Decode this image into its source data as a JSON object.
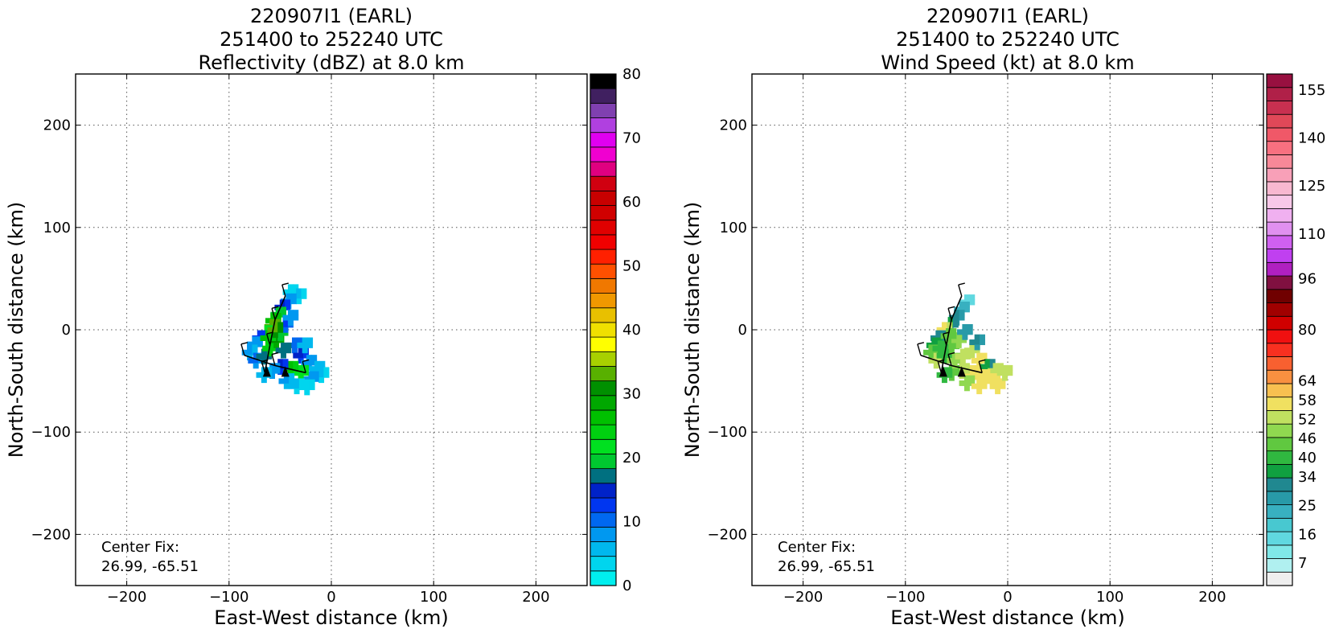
{
  "chart_data": [
    {
      "type": "heatmap",
      "title_lines": [
        "220907I1 (EARL)",
        "251400 to 252240 UTC",
        "Reflectivity (dBZ) at 8.0 km"
      ],
      "xlabel": "East-West distance (km)",
      "ylabel": "North-South distance (km)",
      "xlim": [
        -250,
        250
      ],
      "ylim": [
        -250,
        250
      ],
      "xticks": [
        -200,
        -100,
        0,
        100,
        200
      ],
      "yticks": [
        -200,
        -100,
        0,
        100,
        200
      ],
      "grid": true,
      "annotation": [
        "Center Fix:",
        "26.99, -65.51"
      ],
      "colorbar": {
        "min": 0,
        "max": 80,
        "tick_values": [
          0,
          10,
          20,
          30,
          40,
          50,
          60,
          70,
          80
        ],
        "tick_labels": [
          "0",
          "10",
          "20",
          "30",
          "40",
          "50",
          "60",
          "70",
          "80"
        ],
        "colors": [
          "#00eeee",
          "#00d5ee",
          "#00b8ee",
          "#0098f0",
          "#0068f0",
          "#0036f0",
          "#0022c8",
          "#007080",
          "#00c830",
          "#00e020",
          "#00d010",
          "#00c000",
          "#00a800",
          "#009000",
          "#58b000",
          "#a8d000",
          "#ffff00",
          "#f0e000",
          "#e8c000",
          "#f09800",
          "#f07800",
          "#ff5000",
          "#ff2000",
          "#f00000",
          "#e00000",
          "#d00000",
          "#c80000",
          "#d00010",
          "#e00080",
          "#f000d0",
          "#e000f0",
          "#b040e0",
          "#8040b0",
          "#402060",
          "#000000"
        ]
      },
      "echo_cells": [
        {
          "x": -40,
          "y": 37,
          "v": 4
        },
        {
          "x": -32,
          "y": 33,
          "v": 5
        },
        {
          "x": -42,
          "y": 28,
          "v": 8
        },
        {
          "x": -48,
          "y": 22,
          "v": 14
        },
        {
          "x": -52,
          "y": 15,
          "v": 20
        },
        {
          "x": -57,
          "y": 9,
          "v": 27
        },
        {
          "x": -58,
          "y": 3,
          "v": 33
        },
        {
          "x": -63,
          "y": -3,
          "v": 22
        },
        {
          "x": -70,
          "y": -8,
          "v": 13
        },
        {
          "x": -75,
          "y": -14,
          "v": 9
        },
        {
          "x": -80,
          "y": -22,
          "v": 7
        },
        {
          "x": -74,
          "y": -30,
          "v": 10
        },
        {
          "x": -66,
          "y": -26,
          "v": 18
        },
        {
          "x": -60,
          "y": -18,
          "v": 25
        },
        {
          "x": -54,
          "y": -10,
          "v": 30
        },
        {
          "x": -50,
          "y": -3,
          "v": 20
        },
        {
          "x": -45,
          "y": 5,
          "v": 12
        },
        {
          "x": -40,
          "y": 12,
          "v": 8
        },
        {
          "x": -36,
          "y": -15,
          "v": 11
        },
        {
          "x": -30,
          "y": -25,
          "v": 14
        },
        {
          "x": -22,
          "y": -32,
          "v": 9
        },
        {
          "x": -14,
          "y": -38,
          "v": 6
        },
        {
          "x": -10,
          "y": -44,
          "v": 5
        },
        {
          "x": -20,
          "y": -48,
          "v": 8
        },
        {
          "x": -30,
          "y": -42,
          "v": 22
        },
        {
          "x": -40,
          "y": -38,
          "v": 26
        },
        {
          "x": -50,
          "y": -36,
          "v": 14
        },
        {
          "x": -58,
          "y": -40,
          "v": 9
        },
        {
          "x": -66,
          "y": -44,
          "v": 6
        },
        {
          "x": -44,
          "y": -50,
          "v": 7
        },
        {
          "x": -34,
          "y": -55,
          "v": 5
        },
        {
          "x": -24,
          "y": -56,
          "v": 4
        },
        {
          "x": -62,
          "y": -8,
          "v": 26
        },
        {
          "x": -55,
          "y": 0,
          "v": 32
        },
        {
          "x": -47,
          "y": -20,
          "v": 17
        },
        {
          "x": -26,
          "y": -15,
          "v": 6
        }
      ]
    },
    {
      "type": "heatmap",
      "title_lines": [
        "220907I1 (EARL)",
        "251400 to 252240 UTC",
        "Wind Speed (kt) at 8.0 km"
      ],
      "xlabel": "East-West distance (km)",
      "ylabel": "North-South distance (km)",
      "xlim": [
        -250,
        250
      ],
      "ylim": [
        -250,
        250
      ],
      "xticks": [
        -200,
        -100,
        0,
        100,
        200
      ],
      "yticks": [
        -200,
        -100,
        0,
        100,
        200
      ],
      "grid": true,
      "annotation": [
        "Center Fix:",
        "26.99, -65.51"
      ],
      "colorbar": {
        "min": 0,
        "max": 160,
        "tick_values": [
          7,
          16,
          25,
          34,
          40,
          46,
          52,
          58,
          64,
          80,
          96,
          110,
          125,
          140,
          155
        ],
        "tick_labels": [
          "7",
          "16",
          "25",
          "34",
          "40",
          "46",
          "52",
          "58",
          "64",
          "80",
          "96",
          "110",
          "125",
          "140",
          "155"
        ],
        "colors": [
          "#eeeeee",
          "#b0f0f0",
          "#80e8e8",
          "#60d8e0",
          "#48c8d0",
          "#38b0c0",
          "#289aa8",
          "#208890",
          "#10a040",
          "#30b840",
          "#60c840",
          "#90d850",
          "#c0e060",
          "#f0e060",
          "#f8c050",
          "#f89040",
          "#f86030",
          "#f83020",
          "#f01010",
          "#d00000",
          "#a00000",
          "#700000",
          "#801040",
          "#b020c0",
          "#c040f0",
          "#d060f0",
          "#e090f0",
          "#f0b0f0",
          "#f8c8e8",
          "#f8b8d0",
          "#f8a0b8",
          "#f88898",
          "#f87080",
          "#f05868",
          "#e04858",
          "#c83050",
          "#b02048",
          "#981040"
        ]
      },
      "echo_cells": [
        {
          "x": -40,
          "y": 27,
          "v": 16
        },
        {
          "x": -45,
          "y": 20,
          "v": 25
        },
        {
          "x": -50,
          "y": 12,
          "v": 30
        },
        {
          "x": -56,
          "y": 5,
          "v": 34
        },
        {
          "x": -62,
          "y": 0,
          "v": 55
        },
        {
          "x": -68,
          "y": -8,
          "v": 32
        },
        {
          "x": -72,
          "y": -15,
          "v": 36
        },
        {
          "x": -75,
          "y": -22,
          "v": 46
        },
        {
          "x": -70,
          "y": -30,
          "v": 52
        },
        {
          "x": -62,
          "y": -25,
          "v": 40
        },
        {
          "x": -55,
          "y": -16,
          "v": 44
        },
        {
          "x": -48,
          "y": -10,
          "v": 50
        },
        {
          "x": -42,
          "y": -2,
          "v": 28
        },
        {
          "x": -35,
          "y": -20,
          "v": 54
        },
        {
          "x": -28,
          "y": -30,
          "v": 56
        },
        {
          "x": -20,
          "y": -36,
          "v": 34
        },
        {
          "x": -12,
          "y": -40,
          "v": 54
        },
        {
          "x": -15,
          "y": -50,
          "v": 58
        },
        {
          "x": -25,
          "y": -46,
          "v": 57
        },
        {
          "x": -35,
          "y": -42,
          "v": 56
        },
        {
          "x": -45,
          "y": -40,
          "v": 52
        },
        {
          "x": -55,
          "y": -42,
          "v": 46
        },
        {
          "x": -62,
          "y": -44,
          "v": 42
        },
        {
          "x": -40,
          "y": -52,
          "v": 50
        },
        {
          "x": -28,
          "y": -55,
          "v": 56
        },
        {
          "x": -10,
          "y": -55,
          "v": 58
        },
        {
          "x": -3,
          "y": -42,
          "v": 54
        },
        {
          "x": -52,
          "y": -30,
          "v": 48
        },
        {
          "x": -44,
          "y": -26,
          "v": 52
        },
        {
          "x": -30,
          "y": -12,
          "v": 30
        },
        {
          "x": -66,
          "y": -18,
          "v": 40
        },
        {
          "x": -58,
          "y": -6,
          "v": 46
        }
      ]
    }
  ]
}
